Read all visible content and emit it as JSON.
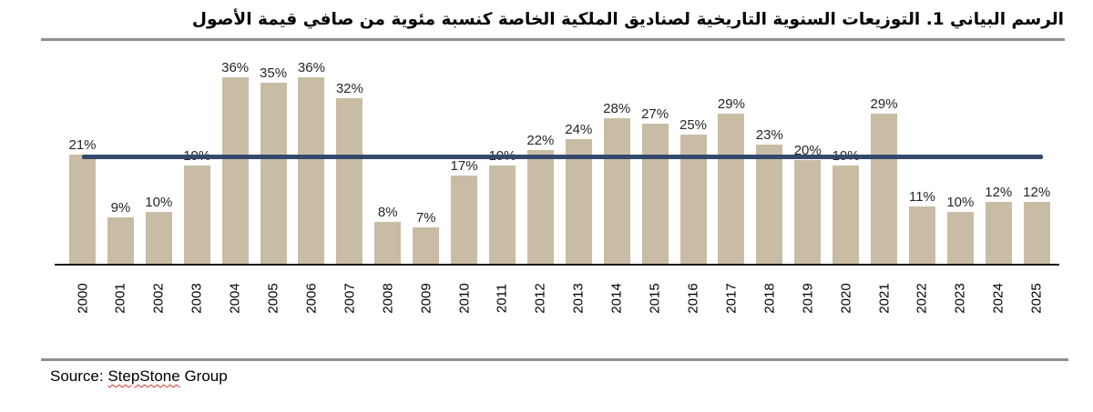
{
  "header": {
    "title": "الرسم البياني 1. التوزيعات السنوية التاريخية لصناديق الملكية الخاصة كنسبة مئوية من صافي قيمة الأصول"
  },
  "source": {
    "prefix": "Source: ",
    "org": "StepStone",
    "suffix": " Group"
  },
  "chart_data": {
    "type": "bar",
    "categories": [
      "2000",
      "2001",
      "2002",
      "2003",
      "2004",
      "2005",
      "2006",
      "2007",
      "2008",
      "2009",
      "2010",
      "2011",
      "2012",
      "2013",
      "2014",
      "2015",
      "2016",
      "2017",
      "2018",
      "2019",
      "2020",
      "2021",
      "2022",
      "2023",
      "2024",
      "2025"
    ],
    "values": [
      21,
      9,
      10,
      19,
      36,
      35,
      36,
      32,
      8,
      7,
      17,
      19,
      22,
      24,
      28,
      27,
      25,
      29,
      23,
      20,
      19,
      29,
      11,
      10,
      12,
      12
    ],
    "value_suffix": "%",
    "data_labels": true,
    "grid": false,
    "ylim": [
      0,
      38
    ],
    "bar_color": "#c8bca4",
    "reference_line": {
      "value": 21,
      "color": "#35496d"
    }
  }
}
